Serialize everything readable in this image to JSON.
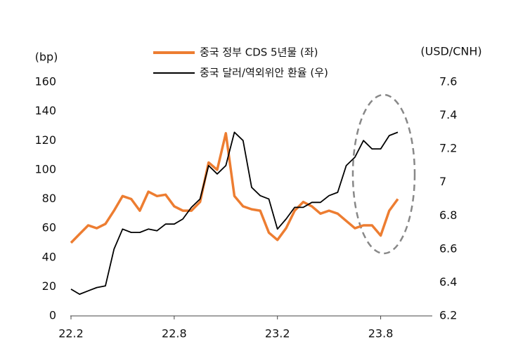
{
  "chart_data": {
    "type": "line",
    "y_label": "(bp)",
    "y2_label": "(USD/CNH)",
    "categories": [
      "22.2",
      null,
      null,
      null,
      null,
      null,
      null,
      null,
      null,
      null,
      null,
      null,
      "22.8",
      null,
      null,
      null,
      null,
      null,
      null,
      null,
      null,
      null,
      null,
      null,
      "23.2",
      null,
      null,
      null,
      null,
      null,
      null,
      null,
      null,
      null,
      null,
      null,
      "23.8",
      null,
      null
    ],
    "series": [
      {
        "name": "중국 정부 CDS 5년물 (좌)",
        "color": "#ED7D31",
        "axis": "y",
        "values": [
          50,
          56,
          62,
          60,
          63,
          72,
          82,
          80,
          72,
          85,
          82,
          83,
          75,
          72,
          72,
          78,
          105,
          100,
          125,
          82,
          75,
          73,
          72,
          57,
          52,
          60,
          72,
          78,
          75,
          70,
          72,
          70,
          65,
          60,
          62,
          62,
          55,
          72,
          80
        ]
      },
      {
        "name": "중국 달러/역외위안 환율 (우)",
        "color": "#000000",
        "axis": "y2",
        "values": [
          6.36,
          6.33,
          6.35,
          6.37,
          6.38,
          6.6,
          6.72,
          6.7,
          6.7,
          6.72,
          6.71,
          6.75,
          6.75,
          6.78,
          6.85,
          6.9,
          7.1,
          7.05,
          7.1,
          7.3,
          7.25,
          6.97,
          6.92,
          6.9,
          6.72,
          6.78,
          6.85,
          6.85,
          6.88,
          6.88,
          6.92,
          6.94,
          7.1,
          7.15,
          7.25,
          7.2,
          7.2,
          7.28,
          7.3
        ]
      }
    ],
    "ylim": [
      0,
      160
    ],
    "yticks": [
      0,
      20,
      40,
      60,
      80,
      100,
      120,
      140,
      160
    ],
    "y2lim": [
      6.2,
      7.6
    ],
    "y2ticks": [
      6.2,
      6.4,
      6.6,
      6.8,
      7,
      7.2,
      7.4,
      7.6
    ]
  }
}
